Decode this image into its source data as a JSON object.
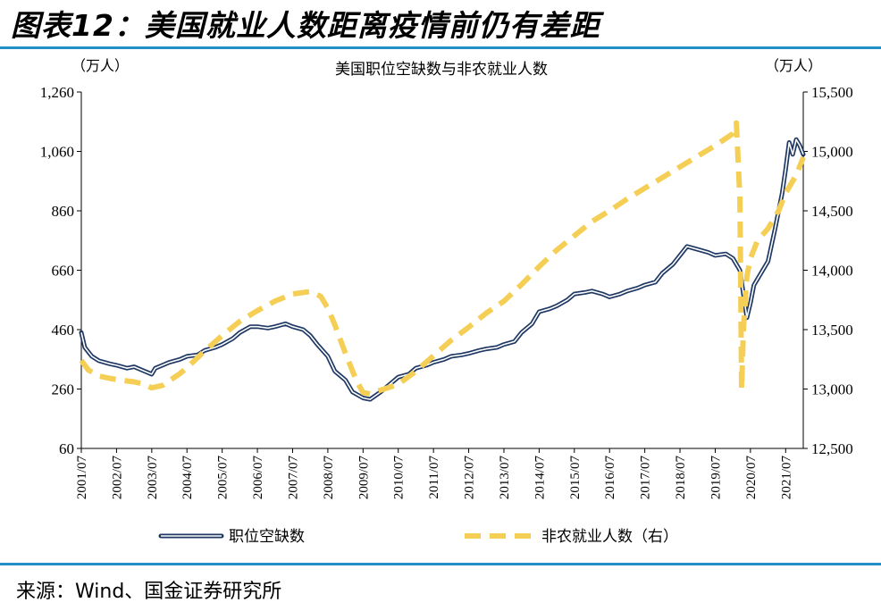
{
  "figure": {
    "title": "图表12：美国就业人数距离疫情前仍有差距",
    "source": "来源：Wind、国金证券研究所"
  },
  "colors": {
    "accent_rule": "#1f8fc6",
    "openings_line": "#1f3864",
    "payrolls_line": "#f5cf55"
  },
  "chart_data": {
    "type": "line",
    "title": "美国职位空缺数与非农就业人数",
    "y_left": {
      "unit": "（万人）",
      "ylim": [
        60,
        1260
      ],
      "ticks": [
        "1,260",
        "1,060",
        "860",
        "660",
        "460",
        "260",
        "60"
      ],
      "tick_values": [
        1260,
        1060,
        860,
        660,
        460,
        260,
        60
      ]
    },
    "y_right": {
      "unit": "（万人）",
      "ylim": [
        12500,
        15500
      ],
      "ticks": [
        "15,500",
        "15,000",
        "14,500",
        "14,000",
        "13,500",
        "13,000",
        "12,500"
      ],
      "tick_values": [
        15500,
        15000,
        14500,
        14000,
        13500,
        13000,
        12500
      ]
    },
    "x_ticks": [
      "2001/07",
      "2002/07",
      "2003/07",
      "2004/07",
      "2005/07",
      "2006/07",
      "2007/07",
      "2008/07",
      "2009/07",
      "2010/07",
      "2011/07",
      "2012/07",
      "2013/07",
      "2014/07",
      "2015/07",
      "2016/07",
      "2017/07",
      "2018/07",
      "2019/07",
      "2020/07",
      "2021/07"
    ],
    "x_tick_values": [
      2001.5,
      2002.5,
      2003.5,
      2004.5,
      2005.5,
      2006.5,
      2007.5,
      2008.5,
      2009.5,
      2010.5,
      2011.5,
      2012.5,
      2013.5,
      2014.5,
      2015.5,
      2016.5,
      2017.5,
      2018.5,
      2019.5,
      2020.5,
      2021.5
    ],
    "xlim": [
      2001.5,
      2022.0
    ],
    "grid": false,
    "legend_position": "bottom",
    "series": [
      {
        "name": "职位空缺数",
        "axis": "left",
        "style": "double-line",
        "x": [
          2001.5,
          2001.6,
          2001.8,
          2002.0,
          2002.3,
          2002.5,
          2002.8,
          2003.0,
          2003.3,
          2003.5,
          2003.6,
          2003.8,
          2004.0,
          2004.3,
          2004.5,
          2004.8,
          2005.0,
          2005.3,
          2005.5,
          2005.8,
          2006.0,
          2006.3,
          2006.5,
          2006.8,
          2007.0,
          2007.3,
          2007.5,
          2007.8,
          2008.0,
          2008.2,
          2008.5,
          2008.7,
          2009.0,
          2009.2,
          2009.5,
          2009.7,
          2010.0,
          2010.3,
          2010.5,
          2010.8,
          2011.0,
          2011.3,
          2011.5,
          2011.8,
          2012.0,
          2012.3,
          2012.5,
          2012.8,
          2013.0,
          2013.3,
          2013.5,
          2013.8,
          2014.0,
          2014.3,
          2014.5,
          2014.8,
          2015.0,
          2015.3,
          2015.5,
          2015.8,
          2016.0,
          2016.3,
          2016.5,
          2016.8,
          2017.0,
          2017.3,
          2017.5,
          2017.8,
          2018.0,
          2018.3,
          2018.5,
          2018.7,
          2019.0,
          2019.3,
          2019.5,
          2019.8,
          2020.0,
          2020.2,
          2020.3,
          2020.4,
          2020.5,
          2020.6,
          2020.8,
          2021.0,
          2021.2,
          2021.4,
          2021.5,
          2021.6,
          2021.7,
          2021.8,
          2021.9,
          2022.0
        ],
        "values": [
          450,
          400,
          370,
          355,
          345,
          340,
          330,
          335,
          320,
          310,
          330,
          340,
          350,
          360,
          370,
          375,
          390,
          400,
          410,
          430,
          450,
          470,
          470,
          465,
          470,
          480,
          470,
          460,
          440,
          410,
          370,
          320,
          290,
          250,
          230,
          225,
          250,
          280,
          300,
          310,
          330,
          340,
          350,
          360,
          370,
          375,
          380,
          390,
          395,
          400,
          410,
          420,
          450,
          480,
          520,
          530,
          540,
          560,
          580,
          585,
          590,
          580,
          570,
          580,
          590,
          600,
          610,
          620,
          650,
          680,
          710,
          740,
          730,
          720,
          710,
          715,
          700,
          660,
          580,
          500,
          550,
          610,
          650,
          690,
          800,
          920,
          1000,
          1090,
          1050,
          1100,
          1080,
          1050
        ]
      },
      {
        "name": "非农就业人数（右）",
        "axis": "right",
        "style": "dashed",
        "x": [
          2001.5,
          2001.7,
          2002.0,
          2002.3,
          2002.5,
          2003.0,
          2003.3,
          2003.5,
          2003.8,
          2004.0,
          2004.3,
          2004.5,
          2005.0,
          2005.5,
          2006.0,
          2006.5,
          2007.0,
          2007.5,
          2008.0,
          2008.3,
          2008.5,
          2008.7,
          2009.0,
          2009.3,
          2009.5,
          2009.7,
          2010.0,
          2010.5,
          2011.0,
          2011.5,
          2012.0,
          2012.5,
          2013.0,
          2013.5,
          2014.0,
          2014.5,
          2015.0,
          2015.5,
          2016.0,
          2016.5,
          2017.0,
          2017.5,
          2018.0,
          2018.5,
          2019.0,
          2019.5,
          2020.0,
          2020.1,
          2020.2,
          2020.25,
          2020.3,
          2020.4,
          2020.5,
          2020.7,
          2021.0,
          2021.3,
          2021.5,
          2021.8,
          2022.0
        ],
        "values": [
          13240,
          13160,
          13110,
          13090,
          13080,
          13060,
          13040,
          13010,
          13030,
          13070,
          13130,
          13180,
          13320,
          13450,
          13570,
          13660,
          13740,
          13800,
          13820,
          13780,
          13680,
          13540,
          13300,
          13080,
          12970,
          12960,
          12990,
          13040,
          13150,
          13280,
          13410,
          13520,
          13640,
          13740,
          13880,
          14030,
          14170,
          14290,
          14410,
          14500,
          14600,
          14690,
          14780,
          14870,
          14960,
          15050,
          15150,
          15240,
          14600,
          13000,
          13500,
          13950,
          14100,
          14250,
          14350,
          14500,
          14650,
          14800,
          14950
        ]
      }
    ]
  }
}
